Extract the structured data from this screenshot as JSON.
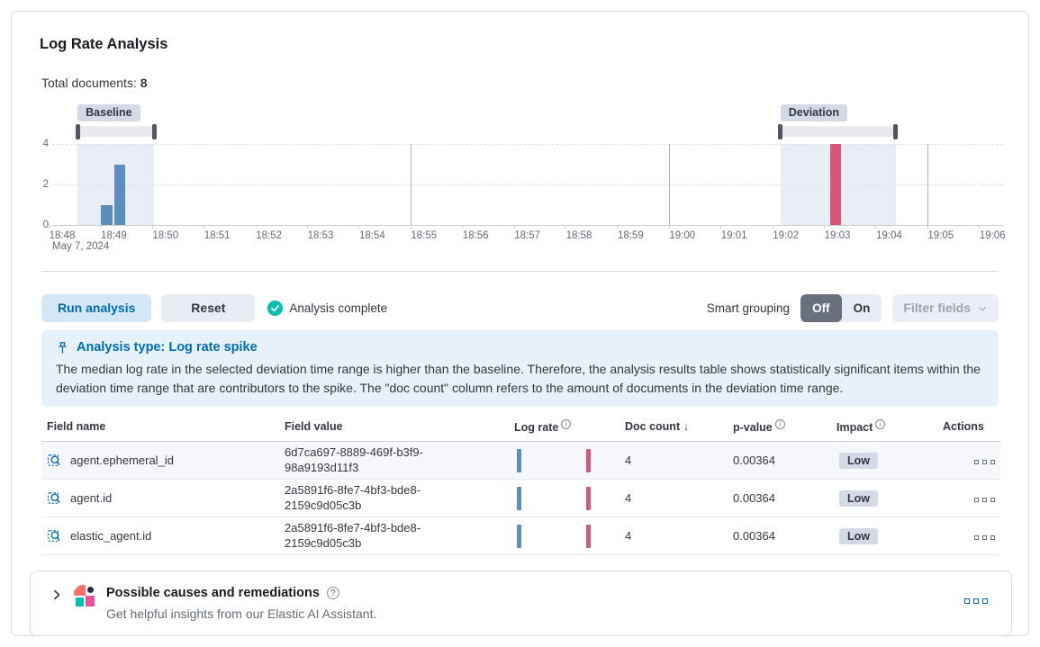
{
  "header": {
    "title": "Log Rate Analysis",
    "total_documents_label": "Total documents:",
    "total_documents_value": "8"
  },
  "chart_data": {
    "type": "bar",
    "title": "document count histogram",
    "ylim": [
      0,
      4
    ],
    "y_ticks": [
      0,
      2,
      4
    ],
    "x_tick_labels": [
      "18:48",
      "18:49",
      "18:50",
      "18:51",
      "18:52",
      "18:53",
      "18:54",
      "18:55",
      "18:56",
      "18:57",
      "18:58",
      "18:59",
      "19:00",
      "19:01",
      "19:02",
      "19:03",
      "19:04",
      "19:05",
      "19:06"
    ],
    "x_date_label": "May 7, 2024",
    "bars": [
      {
        "time": "18:49:00",
        "minute_offset": 1.0,
        "value": 1,
        "series": "baseline"
      },
      {
        "time": "18:49:15",
        "minute_offset": 1.25,
        "value": 3,
        "series": "baseline"
      },
      {
        "time": "19:03:00",
        "minute_offset": 15.1,
        "value": 4,
        "series": "deviation"
      }
    ],
    "brushes": [
      {
        "label": "Baseline",
        "start_min": 0.56,
        "end_min": 2.04
      },
      {
        "label": "Deviation",
        "start_min": 14.16,
        "end_min": 16.39
      }
    ],
    "vertical_gridlines_min": [
      7,
      12,
      17
    ],
    "colors": {
      "baseline_bar": "#5a8ebe",
      "deviation_bar": "#d65776",
      "brush_region": "#e9edf6",
      "badge_bg": "#d3dae6"
    }
  },
  "toolbar": {
    "run_analysis": "Run analysis",
    "reset": "Reset",
    "status": "Analysis complete",
    "smart_grouping_label": "Smart grouping",
    "off": "Off",
    "on": "On",
    "filter_fields": "Filter fields"
  },
  "callout": {
    "title": "Analysis type: Log rate spike",
    "body": "The median log rate in the selected deviation time range is higher than the baseline. Therefore, the analysis results table shows statistically significant items within the deviation time range that are contributors to the spike. The \"doc count\" column refers to the amount of documents in the deviation time range."
  },
  "table": {
    "headers": [
      "Field name",
      "Field value",
      "Log rate",
      "Doc count",
      "p-value",
      "Impact",
      "Actions"
    ],
    "rows": [
      {
        "field_name": "agent.ephemeral_id",
        "field_value": "6d7ca697-8889-469f-b3f9-98a9193d11f3",
        "doc_count": "4",
        "p_value": "0.00364",
        "impact": "Low"
      },
      {
        "field_name": "agent.id",
        "field_value": "2a5891f6-8fe7-4bf3-bde8-2159c9d05c3b",
        "doc_count": "4",
        "p_value": "0.00364",
        "impact": "Low"
      },
      {
        "field_name": "elastic_agent.id",
        "field_value": "2a5891f6-8fe7-4bf3-bde8-2159c9d05c3b",
        "doc_count": "4",
        "p_value": "0.00364",
        "impact": "Low"
      }
    ]
  },
  "icons": {
    "info_glyph": "i",
    "help_glyph": "?",
    "sort_desc_glyph": "↓"
  },
  "footer": {
    "title": "Possible causes and remediations",
    "subtitle": "Get helpful insights from our Elastic AI Assistant."
  }
}
